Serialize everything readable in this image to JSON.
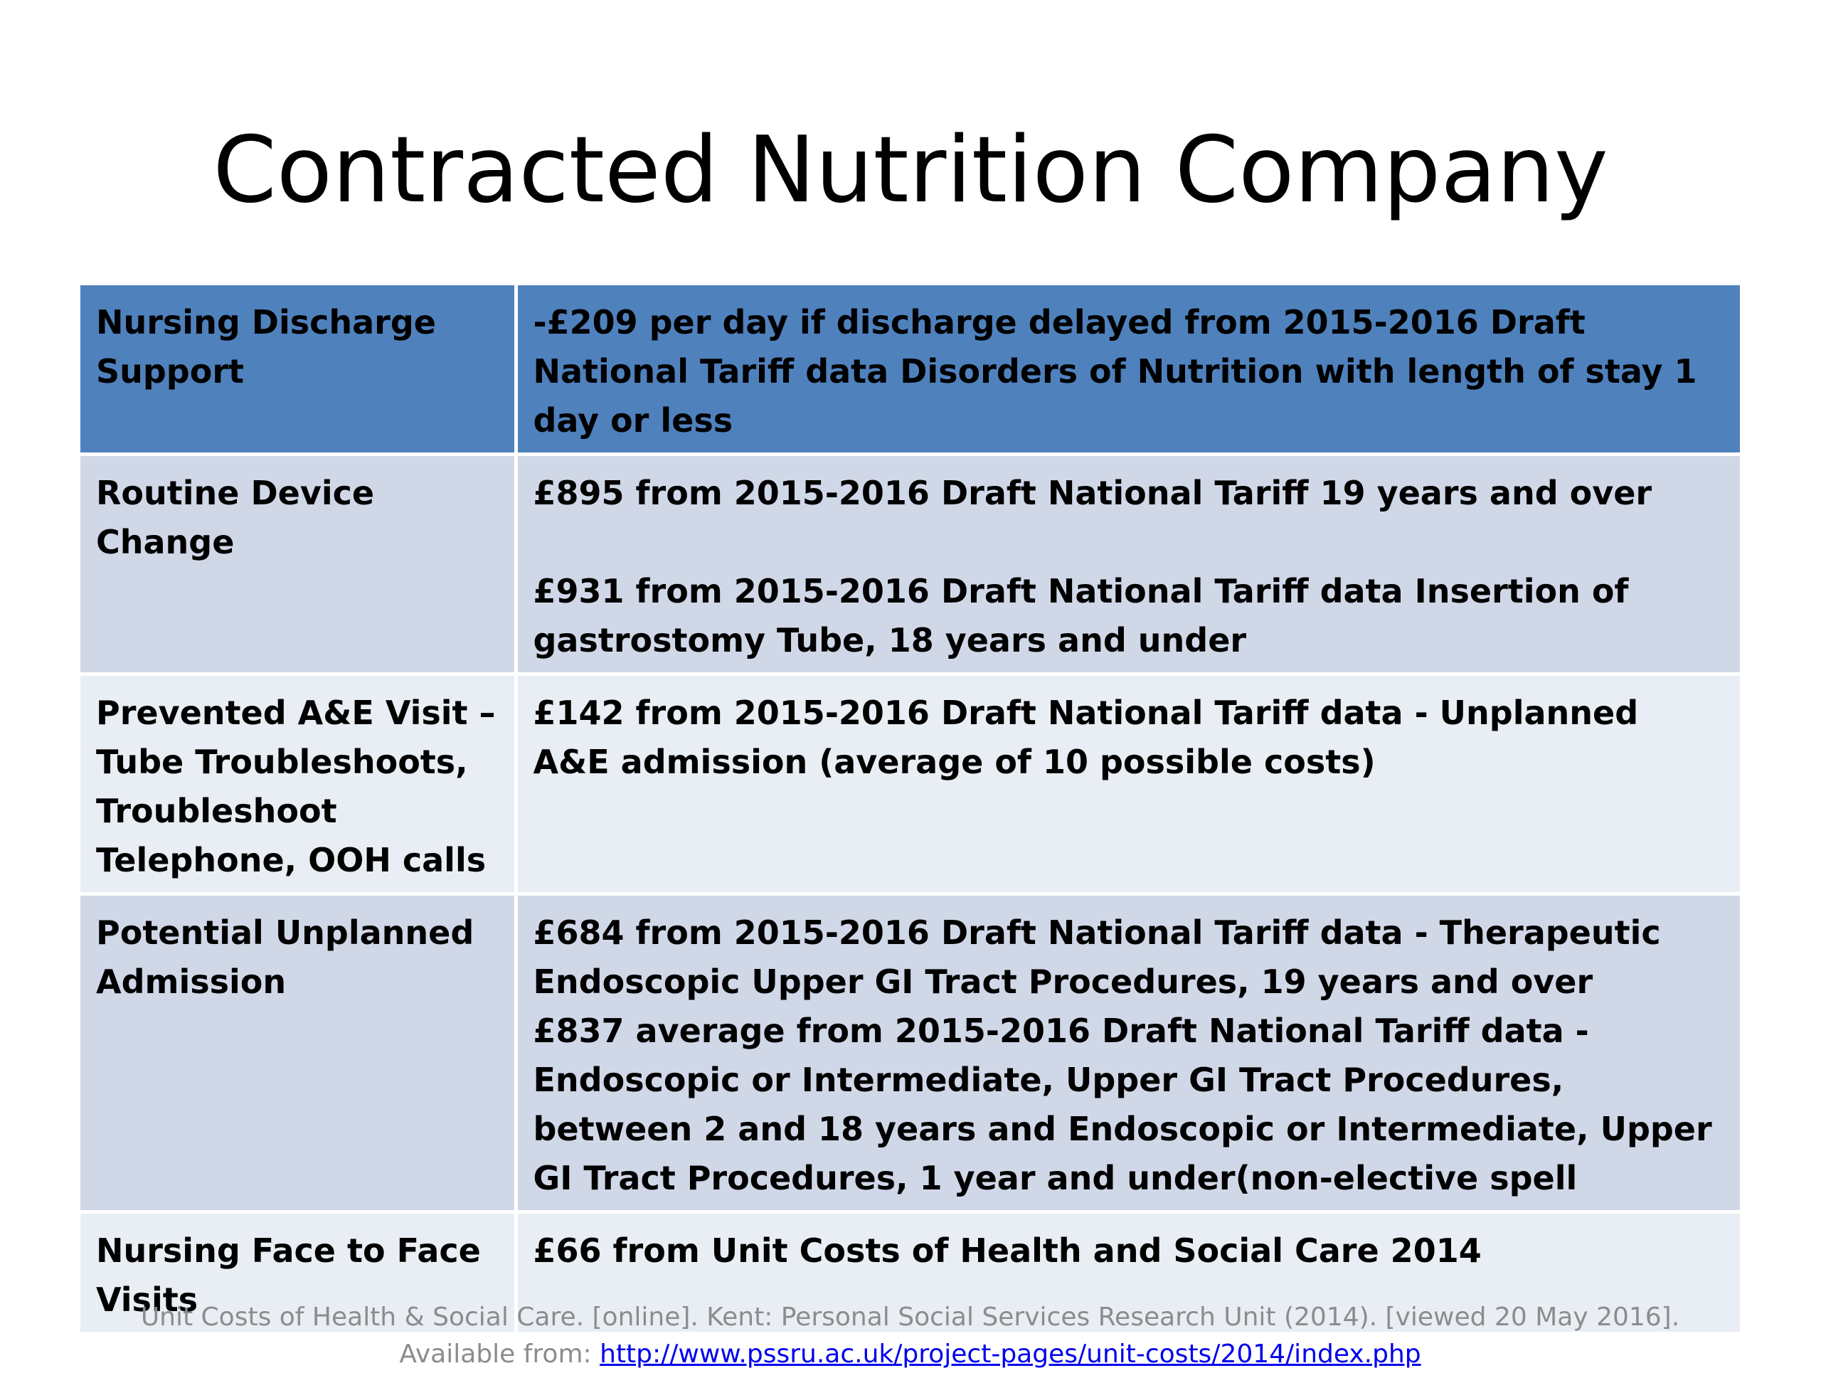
{
  "slide": {
    "title": "Contracted Nutrition Company"
  },
  "table": {
    "rows": [
      {
        "label": "Nursing Discharge Support",
        "values": [
          "-£209 per day if discharge delayed from 2015-2016 Draft National Tariff data Disorders of Nutrition with length of stay 1 day or less"
        ]
      },
      {
        "label": "Routine Device Change",
        "values": [
          "£895 from 2015-2016 Draft National Tariff 19 years and over",
          "£931 from 2015-2016 Draft National Tariff data Insertion of gastrostomy Tube, 18 years and under"
        ]
      },
      {
        "label": "Prevented A&E Visit – Tube Troubleshoots, Troubleshoot Telephone, OOH calls",
        "values": [
          "£142 from 2015-2016 Draft National Tariff data - Unplanned A&E admission (average of 10 possible costs)"
        ]
      },
      {
        "label": "Potential Unplanned Admission",
        "values": [
          "£684 from 2015-2016 Draft National Tariff data - Therapeutic Endoscopic Upper GI Tract Procedures, 19 years and over",
          "£837 average from 2015-2016 Draft National Tariff data - Endoscopic or Intermediate, Upper GI Tract Procedures, between 2 and 18 years and Endoscopic or Intermediate, Upper GI Tract Procedures, 1 year and under(non-elective spell"
        ]
      },
      {
        "label": "Nursing Face to Face Visits",
        "values": [
          "£66 from Unit Costs of Health and Social Care 2014"
        ]
      }
    ]
  },
  "citation": {
    "text": "Unit Costs of Health & Social Care. [online]. Kent: Personal Social Services Research Unit (2014). [viewed 20 May 2016]. Available from:",
    "link": "http://www.pssru.ac.uk/project-pages/unit-costs/2014/index.php"
  },
  "colors": {
    "header_fill": "#4f81bd",
    "band_dark": "#d0d8e8",
    "band_light": "#e9edf4",
    "citation_text": "#8c8c8c",
    "link": "#0000ee"
  }
}
